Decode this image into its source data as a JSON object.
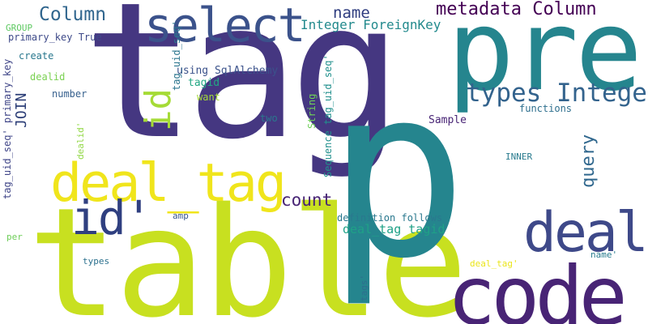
{
  "words": [
    {
      "id": "tag",
      "text": "tag",
      "color": "#453781",
      "orientation": "horizontal"
    },
    {
      "id": "table",
      "text": "table",
      "color": "#c8e020",
      "orientation": "horizontal"
    },
    {
      "id": "p",
      "text": "p",
      "color": "#25858e",
      "orientation": "horizontal"
    },
    {
      "id": "pre",
      "text": "pre",
      "color": "#25858e",
      "orientation": "horizontal"
    },
    {
      "id": "code",
      "text": "code",
      "color": "#482475",
      "orientation": "horizontal"
    },
    {
      "id": "deal_tag",
      "text": "deal_tag",
      "color": "#f0e51c",
      "orientation": "horizontal"
    },
    {
      "id": "deal",
      "text": "deal",
      "color": "#3e4989",
      "orientation": "horizontal"
    },
    {
      "id": "select",
      "text": "select",
      "color": "#3b528b",
      "orientation": "horizontal"
    },
    {
      "id": "id_quote",
      "text": "id'",
      "color": "#2f3f80",
      "orientation": "horizontal"
    },
    {
      "id": "id",
      "text": "id",
      "color": "#a5db36",
      "orientation": "vertical"
    },
    {
      "id": "types_integer",
      "text": "types Integer",
      "color": "#33638d",
      "orientation": "horizontal"
    },
    {
      "id": "metadata_column",
      "text": "metadata Column",
      "color": "#440154",
      "orientation": "horizontal"
    },
    {
      "id": "column",
      "text": "Column",
      "color": "#31668e",
      "orientation": "horizontal"
    },
    {
      "id": "name",
      "text": "name",
      "color": "#2e3c7f",
      "orientation": "horizontal"
    },
    {
      "id": "integer_foreignkey",
      "text": "Integer ForeignKey",
      "color": "#238a8d",
      "orientation": "horizontal"
    },
    {
      "id": "count",
      "text": "count",
      "color": "#482475",
      "orientation": "horizontal"
    },
    {
      "id": "query",
      "text": "query",
      "color": "#31688e",
      "orientation": "vertical"
    },
    {
      "id": "join",
      "text": "JOIN",
      "color": "#2c3e77",
      "orientation": "vertical"
    },
    {
      "id": "deal_tag_tagid",
      "text": "deal_tag tagid",
      "color": "#1fa187",
      "orientation": "horizontal"
    },
    {
      "id": "using_sqlalchemy",
      "text": "using SqlAlchemy",
      "color": "#3b528b",
      "orientation": "horizontal"
    },
    {
      "id": "tagid",
      "text": "tagid",
      "color": "#22a884",
      "orientation": "horizontal"
    },
    {
      "id": "want",
      "text": "want",
      "color": "#a5db36",
      "orientation": "horizontal"
    },
    {
      "id": "sample",
      "text": "Sample",
      "color": "#482475",
      "orientation": "horizontal"
    },
    {
      "id": "functions",
      "text": "functions",
      "color": "#2e6f8e",
      "orientation": "horizontal"
    },
    {
      "id": "string",
      "text": "String",
      "color": "#6ece58",
      "orientation": "vertical"
    },
    {
      "id": "sequence_tag_uid_seq",
      "text": "Sequence tag_uid_seq'",
      "color": "#21908d",
      "orientation": "vertical"
    },
    {
      "id": "tag_uid_seq",
      "text": "tag_uid_seq'",
      "color": "#2b758e",
      "orientation": "vertical"
    },
    {
      "id": "tag_uid_seq_primary_key",
      "text": "tag_uid_seq' primary_key",
      "color": "#404688",
      "orientation": "vertical"
    },
    {
      "id": "primary_key_true",
      "text": "primary_key True",
      "color": "#3e4a89",
      "orientation": "horizontal"
    },
    {
      "id": "group",
      "text": "GROUP",
      "color": "#5ec962",
      "orientation": "horizontal"
    },
    {
      "id": "create",
      "text": "create",
      "color": "#2a788e",
      "orientation": "horizontal"
    },
    {
      "id": "dealid",
      "text": "dealid",
      "color": "#7ad151",
      "orientation": "horizontal"
    },
    {
      "id": "number",
      "text": "number",
      "color": "#355f8d",
      "orientation": "horizontal"
    },
    {
      "id": "dealid_quote",
      "text": "dealid'",
      "color": "#90d743",
      "orientation": "vertical"
    },
    {
      "id": "two",
      "text": "two",
      "color": "#2a788e",
      "orientation": "horizontal"
    },
    {
      "id": "inner",
      "text": "INNER",
      "color": "#297b8e",
      "orientation": "horizontal"
    },
    {
      "id": "definition_follows",
      "text": "definition follows",
      "color": "#2a788e",
      "orientation": "horizontal"
    },
    {
      "id": "amp",
      "text": "amp",
      "color": "#39568c",
      "orientation": "horizontal"
    },
    {
      "id": "per",
      "text": "per",
      "color": "#6ece58",
      "orientation": "horizontal"
    },
    {
      "id": "types",
      "text": "types",
      "color": "#2c718e",
      "orientation": "horizontal"
    },
    {
      "id": "deal_tag_quote",
      "text": "deal_tag'",
      "color": "#eae51a",
      "orientation": "horizontal"
    },
    {
      "id": "name_quote",
      "text": "name'",
      "color": "#287c8e",
      "orientation": "horizontal"
    },
    {
      "id": "tags_quote",
      "text": "tags'",
      "color": "#2e6e8e",
      "orientation": "vertical"
    }
  ]
}
